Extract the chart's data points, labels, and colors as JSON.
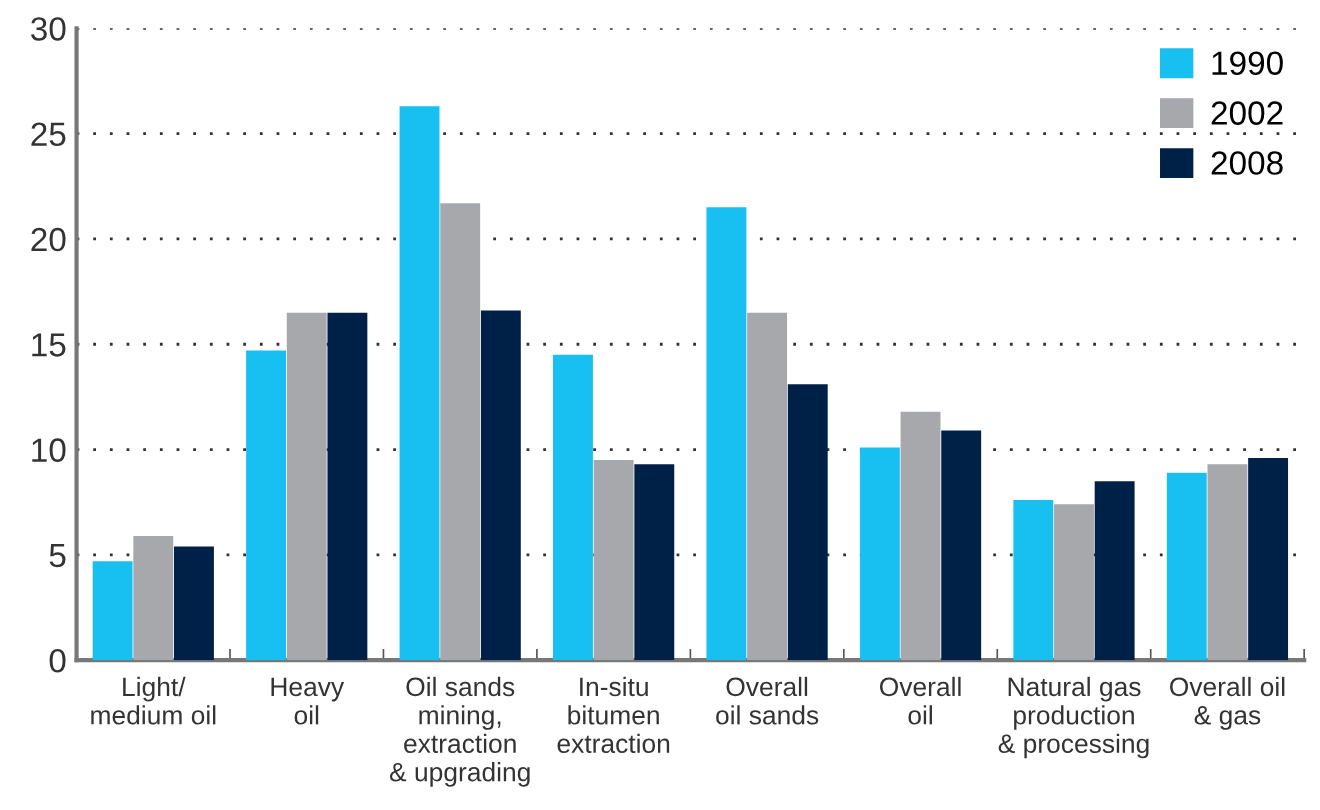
{
  "chart_data": {
    "type": "bar",
    "categories": [
      "Light/\nmedium oil",
      "Heavy\noil",
      "Oil sands\nmining,\nextraction\n& upgrading",
      "In-situ\nbitumen\nextraction",
      "Overall\noil sands",
      "Overall\noil",
      "Natural gas\nproduction\n& processing",
      "Overall oil\n& gas"
    ],
    "series": [
      {
        "name": "1990",
        "color": "#17c0f0",
        "values": [
          4.7,
          14.7,
          26.3,
          14.5,
          21.5,
          10.1,
          7.6,
          8.9
        ]
      },
      {
        "name": "2002",
        "color": "#a7a8ac",
        "values": [
          5.9,
          16.5,
          21.7,
          9.5,
          16.5,
          11.8,
          7.4,
          9.3
        ]
      },
      {
        "name": "2008",
        "color": "#002147",
        "values": [
          5.4,
          16.5,
          16.6,
          9.3,
          13.1,
          10.9,
          8.5,
          9.6
        ]
      }
    ],
    "ylim": [
      0,
      30
    ],
    "yticks": [
      0,
      5,
      10,
      15,
      20,
      25,
      30
    ],
    "grid": "y",
    "legend": "top right"
  }
}
